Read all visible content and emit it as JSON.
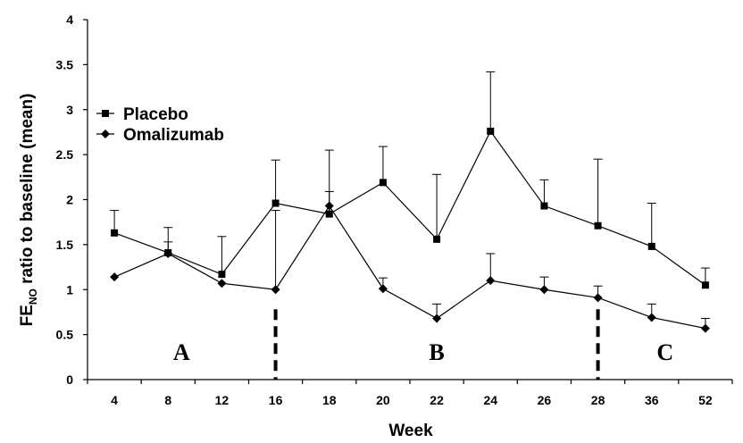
{
  "chart_data": {
    "type": "line",
    "title": "",
    "xlabel": "Week",
    "ylabel": "FE",
    "ylabel_sub": "NO",
    "ylabel_rest": " ratio to baseline (mean)",
    "categories": [
      "4",
      "8",
      "12",
      "16",
      "18",
      "20",
      "22",
      "24",
      "26",
      "28",
      "36",
      "52"
    ],
    "ylim": [
      0,
      4
    ],
    "yticks": [
      "0",
      "0.5",
      "1",
      "1.5",
      "2",
      "2.5",
      "3",
      "3.5",
      "4"
    ],
    "grid": false,
    "legend_position": "top-left",
    "series": [
      {
        "name": "Placebo",
        "marker": "square",
        "values": [
          1.63,
          1.41,
          1.17,
          1.96,
          1.84,
          2.19,
          1.56,
          2.76,
          1.93,
          1.71,
          1.48,
          1.05
        ],
        "error_upper": [
          1.88,
          1.69,
          1.59,
          2.44,
          2.55,
          2.59,
          2.28,
          3.42,
          2.22,
          2.45,
          1.96,
          1.24
        ]
      },
      {
        "name": "Omalizumab",
        "marker": "diamond",
        "values": [
          1.14,
          1.4,
          1.07,
          1.0,
          1.93,
          1.01,
          0.68,
          1.1,
          1.0,
          0.91,
          0.69,
          0.57
        ],
        "error_upper": [
          null,
          1.53,
          null,
          1.88,
          2.09,
          1.13,
          0.84,
          1.4,
          1.14,
          1.04,
          0.84,
          0.68
        ]
      }
    ],
    "phase_dividers_after": [
      "16",
      "28"
    ],
    "phase_labels": [
      "A",
      "B",
      "C"
    ]
  }
}
